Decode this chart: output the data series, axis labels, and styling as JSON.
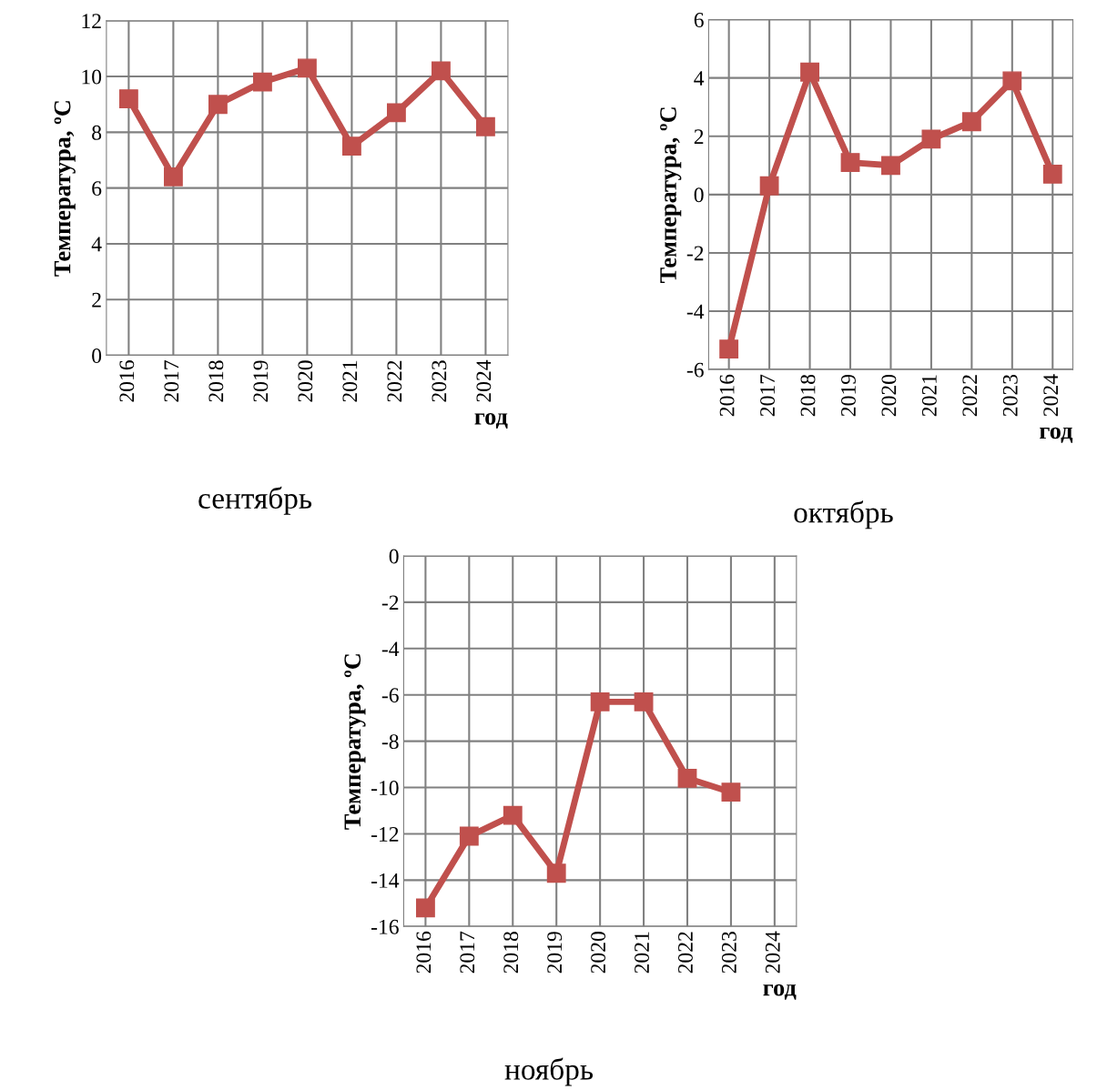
{
  "chart_data": [
    {
      "type": "line",
      "categories": [
        "2016",
        "2017",
        "2018",
        "2019",
        "2020",
        "2021",
        "2022",
        "2023",
        "2024"
      ],
      "values": [
        9.2,
        6.4,
        9.0,
        9.8,
        10.3,
        7.5,
        8.7,
        10.2,
        8.2
      ],
      "color": "#c0504d",
      "ylim": [
        0,
        12
      ],
      "yticks": [
        0,
        2,
        4,
        6,
        8,
        10,
        12
      ],
      "ylabel": "Температура, ºC",
      "xlabel": "год",
      "annotations": [
        "сентябрь"
      ],
      "grid": true,
      "marker": "square",
      "line_style": "solid"
    },
    {
      "type": "line",
      "categories": [
        "2016",
        "2017",
        "2018",
        "2019",
        "2020",
        "2021",
        "2022",
        "2023",
        "2024"
      ],
      "values": [
        -5.3,
        0.3,
        4.2,
        1.1,
        1.0,
        1.9,
        2.5,
        3.9,
        0.7
      ],
      "color": "#c0504d",
      "ylim": [
        -6,
        6
      ],
      "yticks": [
        -6,
        -4,
        -2,
        0,
        2,
        4,
        6
      ],
      "ylabel": "Температура, ºC",
      "xlabel": "год",
      "annotations": [
        "октябрь"
      ],
      "grid": true,
      "marker": "square",
      "line_style": "solid"
    },
    {
      "type": "line",
      "categories": [
        "2016",
        "2017",
        "2018",
        "2019",
        "2020",
        "2021",
        "2022",
        "2023",
        "2024"
      ],
      "values": [
        -15.2,
        -12.1,
        -11.2,
        -13.7,
        -6.3,
        -6.3,
        -9.6,
        -10.2,
        null
      ],
      "color": "#c0504d",
      "ylim": [
        -16,
        0
      ],
      "yticks": [
        -16,
        -14,
        -12,
        -10,
        -8,
        -6,
        -4,
        -2,
        0
      ],
      "ylabel": "Температура, ºC",
      "xlabel": "год",
      "annotations": [
        "ноябрь"
      ],
      "grid": true,
      "marker": "square",
      "line_style": "solid"
    }
  ]
}
